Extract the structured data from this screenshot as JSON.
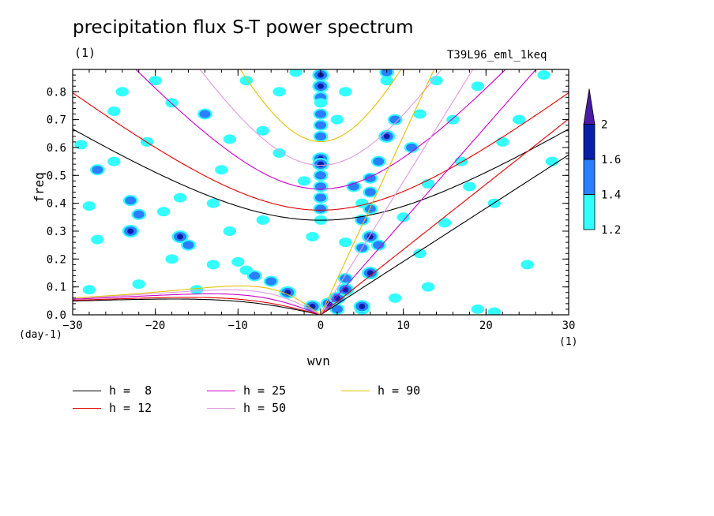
{
  "title": "precipitation flux S-T power spectrum",
  "units_top": "(1)",
  "experiment": "T39L96_eml_1keq",
  "chart_data": {
    "type": "heatmap",
    "title": "precipitation flux S-T power spectrum",
    "xlabel": "wvn",
    "ylabel": "freq",
    "x_units": "(1)",
    "y_units": "(day-1)",
    "xlim": [
      -30,
      30
    ],
    "ylim": [
      0,
      0.88
    ],
    "xticks": [
      -30,
      -20,
      -10,
      0,
      10,
      20,
      30
    ],
    "yticks": [
      0.0,
      0.1,
      0.2,
      0.3,
      0.4,
      0.5,
      0.6,
      0.7,
      0.8
    ],
    "colorbar": {
      "levels": [
        1.2,
        1.4,
        1.6,
        2
      ],
      "colors": [
        "#33ffff",
        "#2a7fff",
        "#0a1fa8",
        "#4b1aa6"
      ]
    },
    "dispersion_curves": [
      {
        "h": "8",
        "color": "#000000"
      },
      {
        "h": "12",
        "color": "#e00000"
      },
      {
        "h": "25",
        "color": "#cc00cc"
      },
      {
        "h": "50",
        "color": "#e09ae0"
      },
      {
        "h": "90",
        "color": "#e6c000"
      }
    ],
    "patches": [
      {
        "x": 0,
        "y": 0.86,
        "l": 3
      },
      {
        "x": 0,
        "y": 0.82,
        "l": 3
      },
      {
        "x": 0,
        "y": 0.78,
        "l": 2
      },
      {
        "x": 0,
        "y": 0.76,
        "l": 1
      },
      {
        "x": 0,
        "y": 0.72,
        "l": 2
      },
      {
        "x": 0,
        "y": 0.68,
        "l": 2
      },
      {
        "x": 0,
        "y": 0.64,
        "l": 2
      },
      {
        "x": 0,
        "y": 0.56,
        "l": 3
      },
      {
        "x": 0,
        "y": 0.54,
        "l": 3
      },
      {
        "x": 0,
        "y": 0.5,
        "l": 2
      },
      {
        "x": 0,
        "y": 0.46,
        "l": 2
      },
      {
        "x": 0,
        "y": 0.42,
        "l": 2
      },
      {
        "x": 0,
        "y": 0.38,
        "l": 2
      },
      {
        "x": 0,
        "y": 0.34,
        "l": 1
      },
      {
        "x": 1,
        "y": 0.04,
        "l": 3
      },
      {
        "x": 2,
        "y": 0.06,
        "l": 3
      },
      {
        "x": 3,
        "y": 0.09,
        "l": 3
      },
      {
        "x": 3,
        "y": 0.13,
        "l": 2
      },
      {
        "x": 2,
        "y": 0.02,
        "l": 2
      },
      {
        "x": -1,
        "y": 0.03,
        "l": 3
      },
      {
        "x": -4,
        "y": 0.08,
        "l": 3
      },
      {
        "x": -6,
        "y": 0.12,
        "l": 2
      },
      {
        "x": -8,
        "y": 0.14,
        "l": 2
      },
      {
        "x": -9,
        "y": 0.16,
        "l": 1
      },
      {
        "x": -10,
        "y": 0.19,
        "l": 1
      },
      {
        "x": 5,
        "y": 0.02,
        "l": 2
      },
      {
        "x": 5,
        "y": 0.03,
        "l": 3
      },
      {
        "x": 6,
        "y": 0.15,
        "l": 3
      },
      {
        "x": 6,
        "y": 0.28,
        "l": 3
      },
      {
        "x": 7,
        "y": 0.25,
        "l": 2
      },
      {
        "x": 5,
        "y": 0.34,
        "l": 2
      },
      {
        "x": 6,
        "y": 0.38,
        "l": 2
      },
      {
        "x": 5,
        "y": 0.24,
        "l": 2
      },
      {
        "x": 6,
        "y": 0.44,
        "l": 2
      },
      {
        "x": 6,
        "y": 0.49,
        "l": 2
      },
      {
        "x": 7,
        "y": 0.55,
        "l": 2
      },
      {
        "x": 8,
        "y": 0.64,
        "l": 3
      },
      {
        "x": 9,
        "y": 0.7,
        "l": 2
      },
      {
        "x": 4,
        "y": 0.46,
        "l": 2
      },
      {
        "x": 5,
        "y": 0.4,
        "l": 1
      },
      {
        "x": 11,
        "y": 0.6,
        "l": 2
      },
      {
        "x": 12,
        "y": 0.72,
        "l": 1
      },
      {
        "x": 8,
        "y": 0.84,
        "l": 1
      },
      {
        "x": 16,
        "y": 0.7,
        "l": 1
      },
      {
        "x": 17,
        "y": 0.55,
        "l": 1
      },
      {
        "x": -17,
        "y": 0.28,
        "l": 3
      },
      {
        "x": -16,
        "y": 0.25,
        "l": 2
      },
      {
        "x": -23,
        "y": 0.3,
        "l": 3
      },
      {
        "x": -22,
        "y": 0.36,
        "l": 2
      },
      {
        "x": -23,
        "y": 0.41,
        "l": 2
      },
      {
        "x": -27,
        "y": 0.52,
        "l": 2
      },
      {
        "x": -25,
        "y": 0.55,
        "l": 1
      },
      {
        "x": -14,
        "y": 0.72,
        "l": 2
      },
      {
        "x": -20,
        "y": 0.84,
        "l": 1
      },
      {
        "x": -21,
        "y": 0.62,
        "l": 1
      },
      {
        "x": -17,
        "y": 0.42,
        "l": 1
      },
      {
        "x": -19,
        "y": 0.37,
        "l": 1
      },
      {
        "x": -28,
        "y": 0.39,
        "l": 1
      },
      {
        "x": -29,
        "y": 0.61,
        "l": 1
      },
      {
        "x": -25,
        "y": 0.73,
        "l": 1
      },
      {
        "x": -12,
        "y": 0.52,
        "l": 1
      },
      {
        "x": -7,
        "y": 0.66,
        "l": 1
      },
      {
        "x": -5,
        "y": 0.58,
        "l": 1
      },
      {
        "x": -2,
        "y": 0.48,
        "l": 1
      },
      {
        "x": -11,
        "y": 0.3,
        "l": 1
      },
      {
        "x": -7,
        "y": 0.34,
        "l": 1
      },
      {
        "x": -13,
        "y": 0.18,
        "l": 1
      },
      {
        "x": -18,
        "y": 0.2,
        "l": 1
      },
      {
        "x": -22,
        "y": 0.11,
        "l": 1
      },
      {
        "x": -5,
        "y": 0.8,
        "l": 1
      },
      {
        "x": -9,
        "y": 0.84,
        "l": 1
      },
      {
        "x": -11,
        "y": 0.63,
        "l": 1
      },
      {
        "x": -3,
        "y": 0.87,
        "l": 1
      },
      {
        "x": 8,
        "y": 0.87,
        "l": 2
      },
      {
        "x": 14,
        "y": 0.84,
        "l": 1
      },
      {
        "x": 19,
        "y": 0.82,
        "l": 1
      },
      {
        "x": 27,
        "y": 0.86,
        "l": 1
      },
      {
        "x": 24,
        "y": 0.7,
        "l": 1
      },
      {
        "x": 22,
        "y": 0.62,
        "l": 1
      },
      {
        "x": 18,
        "y": 0.46,
        "l": 1
      },
      {
        "x": 15,
        "y": 0.33,
        "l": 1
      },
      {
        "x": 12,
        "y": 0.22,
        "l": 1
      },
      {
        "x": 9,
        "y": 0.06,
        "l": 1
      },
      {
        "x": 13,
        "y": 0.1,
        "l": 1
      },
      {
        "x": 19,
        "y": 0.02,
        "l": 1
      },
      {
        "x": 21,
        "y": 0.01,
        "l": 1
      },
      {
        "x": 25,
        "y": 0.18,
        "l": 1
      },
      {
        "x": 3,
        "y": 0.26,
        "l": 1
      },
      {
        "x": 2,
        "y": 0.7,
        "l": 1
      },
      {
        "x": 3,
        "y": 0.8,
        "l": 1
      },
      {
        "x": 10,
        "y": 0.35,
        "l": 1
      },
      {
        "x": 13,
        "y": 0.47,
        "l": 1
      },
      {
        "x": -1,
        "y": 0.28,
        "l": 1
      },
      {
        "x": -13,
        "y": 0.4,
        "l": 1
      },
      {
        "x": -27,
        "y": 0.27,
        "l": 1
      },
      {
        "x": -28,
        "y": 0.09,
        "l": 1
      },
      {
        "x": -15,
        "y": 0.09,
        "l": 1
      },
      {
        "x": -24,
        "y": 0.8,
        "l": 1
      },
      {
        "x": -18,
        "y": 0.76,
        "l": 1
      },
      {
        "x": 21,
        "y": 0.4,
        "l": 1
      },
      {
        "x": 28,
        "y": 0.55,
        "l": 1
      }
    ]
  },
  "legend": [
    {
      "label": "h =  8",
      "color": "#000000"
    },
    {
      "label": "h = 12",
      "color": "#e00000"
    },
    {
      "label": "h = 25",
      "color": "#cc00cc"
    },
    {
      "label": "h = 50",
      "color": "#e09ae0"
    },
    {
      "label": "h = 90",
      "color": "#e6c000"
    }
  ]
}
